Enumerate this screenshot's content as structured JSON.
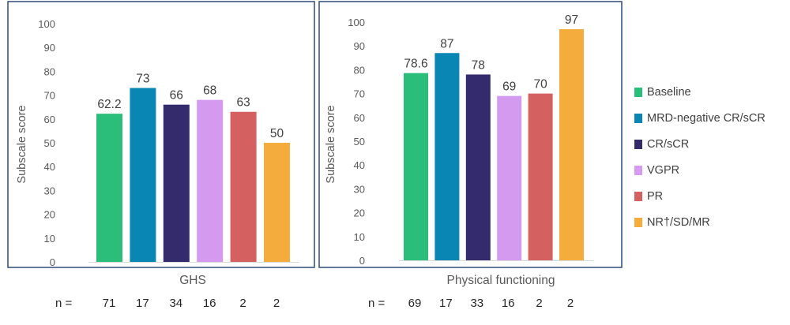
{
  "chart_data": {
    "type": "bar",
    "colors": [
      "#2bbd7a",
      "#0a86b5",
      "#332b6b",
      "#d49af0",
      "#d4605f",
      "#f4ac3c"
    ],
    "legend": {
      "position": "right",
      "entries": [
        "Baseline",
        "MRD-negative CR/sCR",
        "CR/sCR",
        "VGPR",
        "PR",
        "NR†/SD/MR"
      ]
    },
    "n_label": "n =",
    "panels": [
      {
        "xlabel": "GHS",
        "ylabel": "Subscale score",
        "ylim": [
          0,
          100
        ],
        "yticks": [
          "0",
          "10",
          "20",
          "30",
          "40",
          "50",
          "60",
          "70",
          "80",
          "90",
          "100"
        ],
        "values": [
          62.2,
          73,
          66,
          68,
          63,
          50
        ],
        "value_labels": [
          "62.2",
          "73",
          "66",
          "68",
          "63",
          "50"
        ],
        "n": [
          "71",
          "17",
          "34",
          "16",
          "2",
          "2"
        ]
      },
      {
        "xlabel": "Physical functioning",
        "ylabel": "Subscale score",
        "ylim": [
          0,
          100
        ],
        "yticks": [
          "0",
          "10",
          "20",
          "30",
          "40",
          "50",
          "60",
          "70",
          "80",
          "90",
          "100"
        ],
        "values": [
          78.6,
          87,
          78,
          69,
          70,
          97
        ],
        "value_labels": [
          "78.6",
          "87",
          "78",
          "69",
          "70",
          "97"
        ],
        "n": [
          "69",
          "17",
          "33",
          "16",
          "2",
          "2"
        ]
      }
    ]
  }
}
